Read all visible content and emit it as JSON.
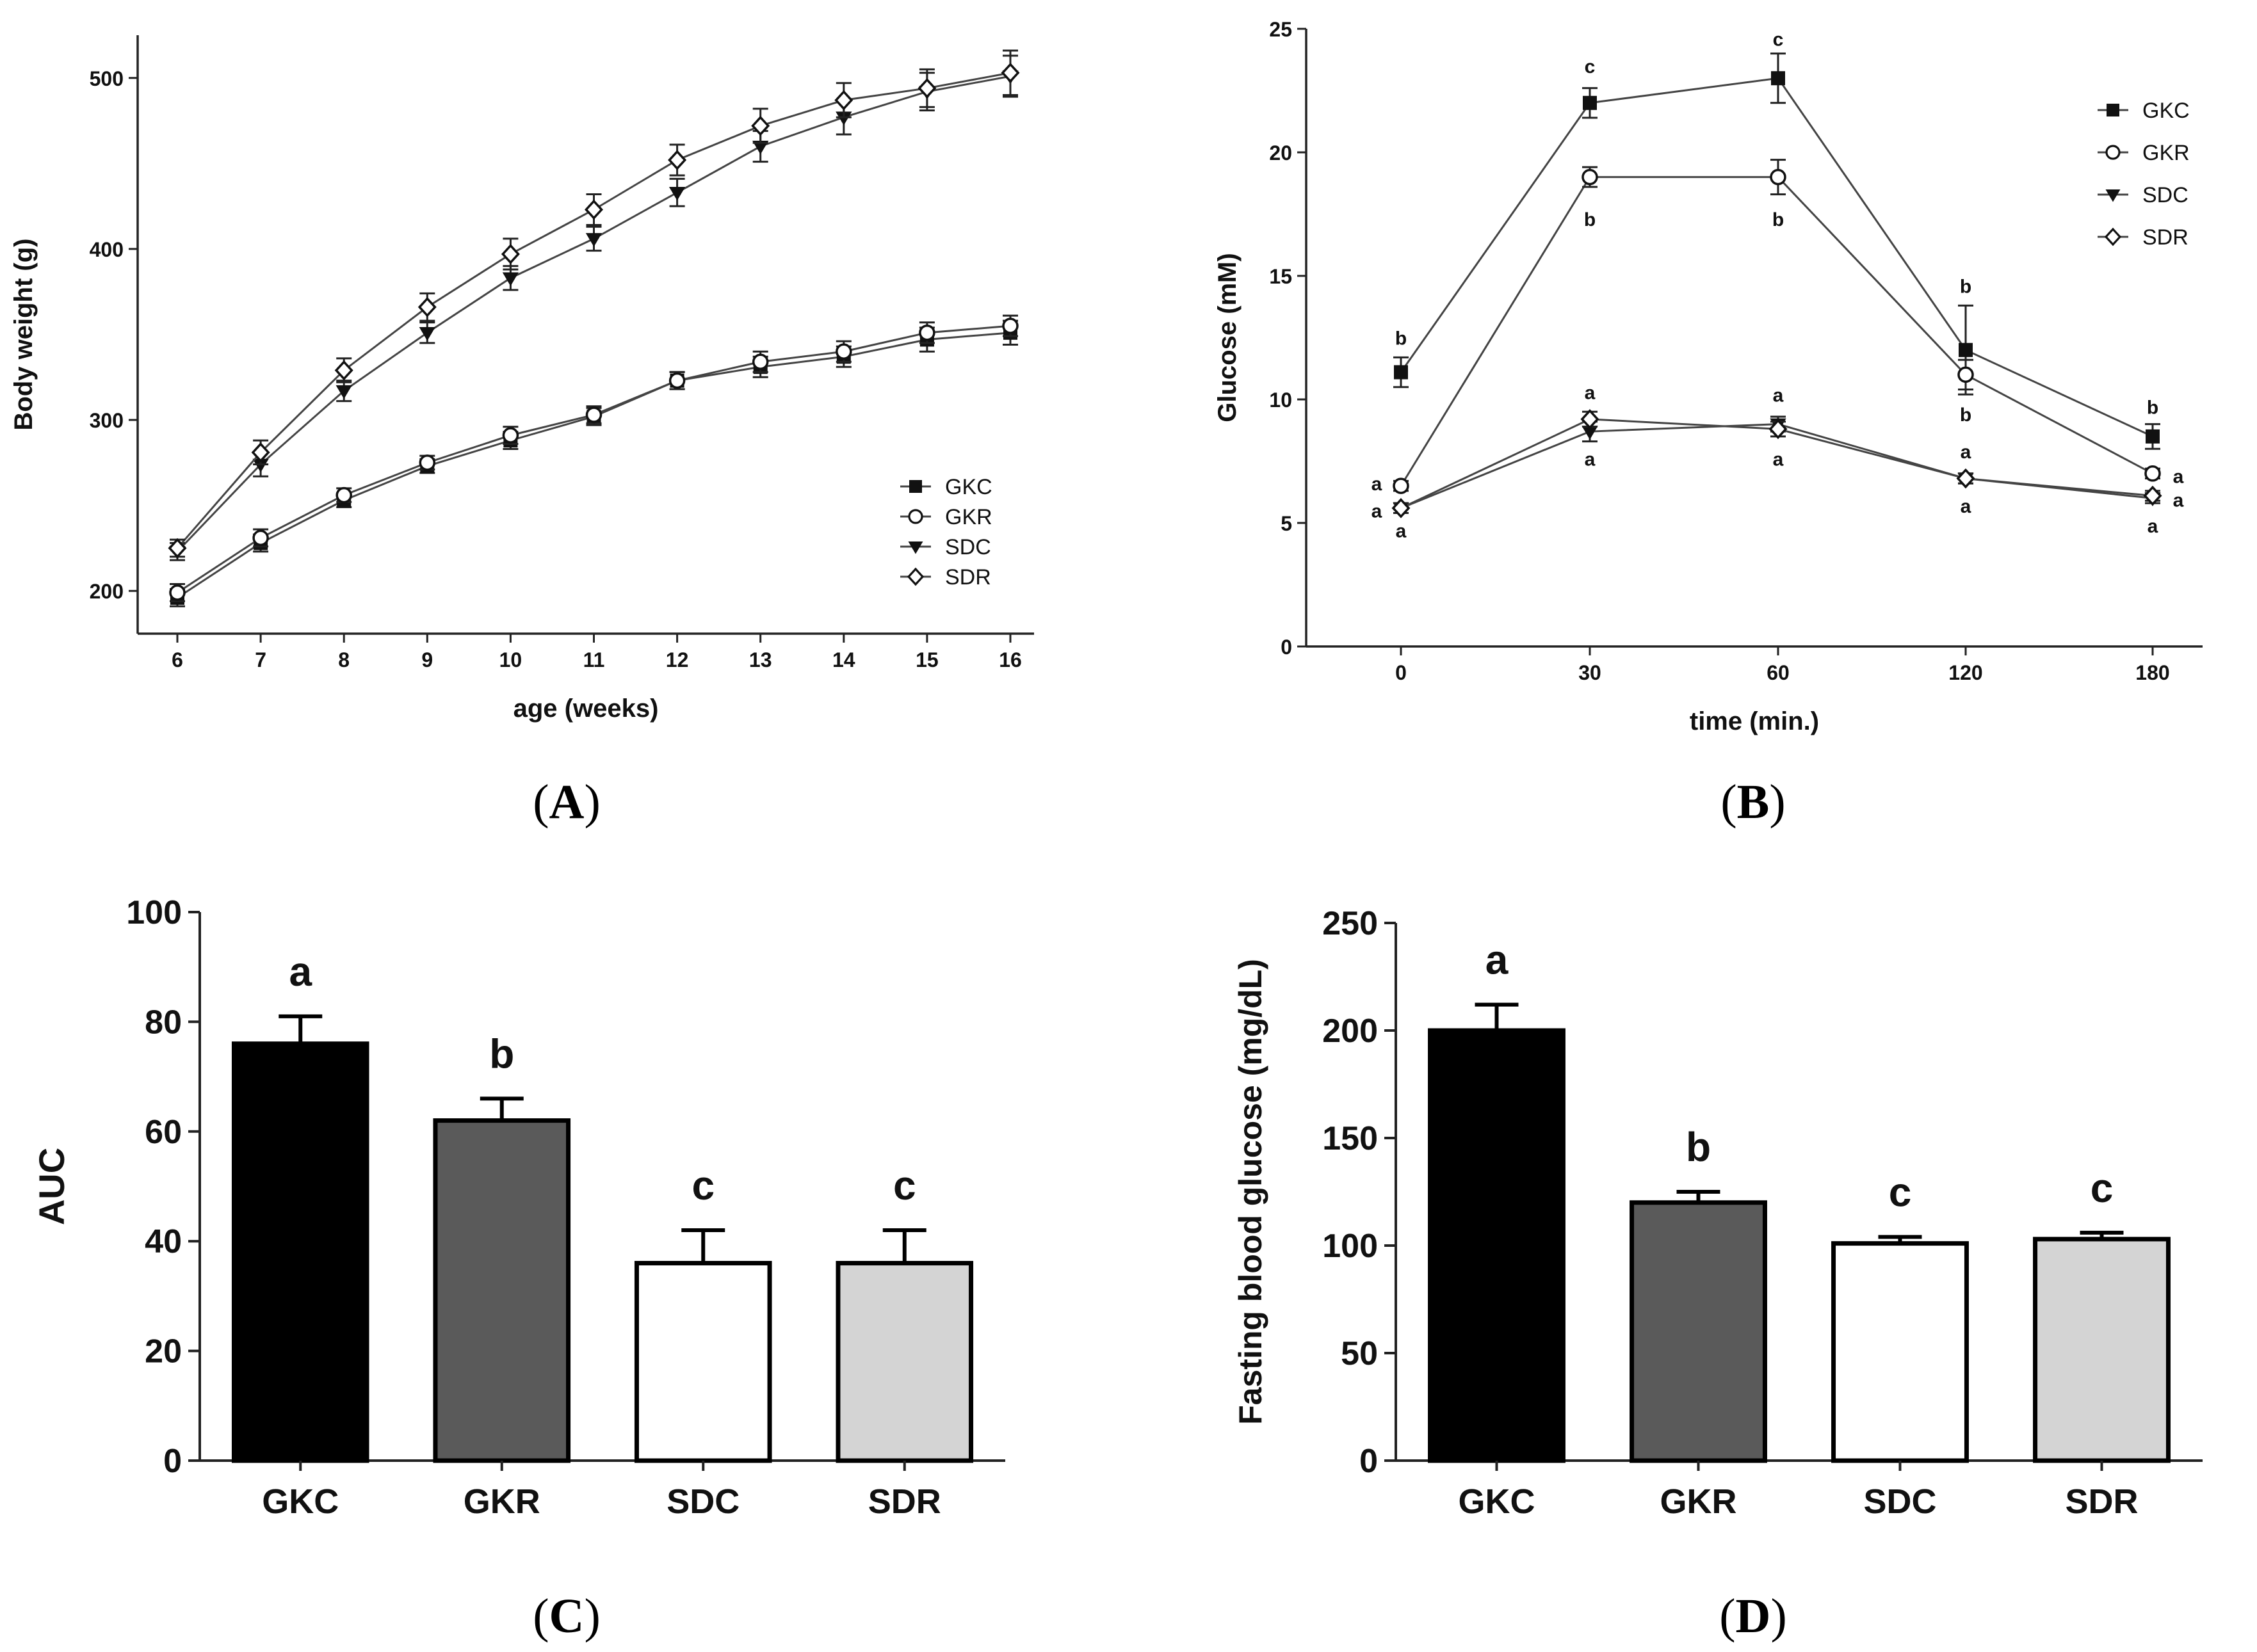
{
  "chart_data": [
    {
      "panel": "A",
      "panel_letter": "A",
      "type": "line",
      "xlabel": "age (weeks)",
      "ylabel": "Body weight (g)",
      "x": [
        6,
        7,
        8,
        9,
        10,
        11,
        12,
        13,
        14,
        15,
        16
      ],
      "xlim": [
        6,
        16
      ],
      "ylim": [
        175,
        525
      ],
      "yticks": [
        200,
        300,
        400,
        500
      ],
      "legend_position": "bottom-right",
      "series": [
        {
          "name": "GKC",
          "marker": "filled-square",
          "values": [
            196,
            228,
            253,
            273,
            288,
            302,
            323,
            331,
            337,
            347,
            351
          ],
          "errors": [
            5,
            5,
            4,
            4,
            5,
            5,
            5,
            6,
            6,
            7,
            7
          ]
        },
        {
          "name": "GKR",
          "marker": "open-circle",
          "values": [
            199,
            231,
            256,
            275,
            291,
            303,
            323,
            334,
            340,
            351,
            355
          ],
          "errors": [
            5,
            5,
            4,
            4,
            5,
            5,
            5,
            6,
            6,
            6,
            6
          ]
        },
        {
          "name": "SDC",
          "marker": "filled-triangle-down",
          "values": [
            223,
            274,
            317,
            351,
            383,
            406,
            433,
            460,
            477,
            492,
            501
          ],
          "errors": [
            5,
            7,
            6,
            6,
            7,
            7,
            8,
            9,
            10,
            11,
            12
          ]
        },
        {
          "name": "SDR",
          "marker": "open-diamond",
          "values": [
            225,
            281,
            329,
            366,
            397,
            423,
            452,
            472,
            487,
            494,
            503
          ],
          "errors": [
            5,
            7,
            7,
            8,
            9,
            9,
            9,
            10,
            10,
            11,
            13
          ]
        }
      ]
    },
    {
      "panel": "B",
      "panel_letter": "B",
      "type": "line",
      "xlabel": "time (min.)",
      "ylabel": "Glucose (mM)",
      "categories": [
        "0",
        "30",
        "60",
        "120",
        "180"
      ],
      "ylim": [
        0,
        25
      ],
      "yticks": [
        0,
        5,
        10,
        15,
        20,
        25
      ],
      "legend_position": "top-right",
      "series": [
        {
          "name": "GKC",
          "marker": "filled-square",
          "values": [
            11.1,
            22.0,
            23.0,
            12.0,
            8.5
          ],
          "errors": [
            0.6,
            0.6,
            1.0,
            1.8,
            0.5
          ]
        },
        {
          "name": "GKR",
          "marker": "open-circle",
          "values": [
            6.5,
            19.0,
            19.0,
            11.0,
            7.0
          ],
          "errors": [
            0.2,
            0.4,
            0.7,
            0.6,
            0.2
          ]
        },
        {
          "name": "SDC",
          "marker": "filled-triangle-down",
          "values": [
            5.6,
            8.7,
            9.0,
            6.8,
            6.0
          ],
          "errors": [
            0.2,
            0.4,
            0.3,
            0.2,
            0.2
          ]
        },
        {
          "name": "SDR",
          "marker": "open-diamond",
          "values": [
            5.6,
            9.2,
            8.8,
            6.8,
            6.1
          ],
          "errors": [
            0.2,
            0.3,
            0.3,
            0.2,
            0.2
          ]
        }
      ],
      "annotations": [
        {
          "category": "0",
          "value": 12.5,
          "text": "b"
        },
        {
          "category": "0",
          "value": 6.6,
          "text": "a",
          "side": "left"
        },
        {
          "category": "0",
          "value": 5.5,
          "text": "a",
          "side": "left"
        },
        {
          "category": "0",
          "value": 4.7,
          "text": "a"
        },
        {
          "category": "30",
          "value": 23.5,
          "text": "c"
        },
        {
          "category": "30",
          "value": 17.3,
          "text": "b"
        },
        {
          "category": "30",
          "value": 10.3,
          "text": "a"
        },
        {
          "category": "30",
          "value": 7.6,
          "text": "a"
        },
        {
          "category": "60",
          "value": 24.6,
          "text": "c"
        },
        {
          "category": "60",
          "value": 17.3,
          "text": "b"
        },
        {
          "category": "60",
          "value": 10.2,
          "text": "a"
        },
        {
          "category": "60",
          "value": 7.6,
          "text": "a"
        },
        {
          "category": "120",
          "value": 14.6,
          "text": "b"
        },
        {
          "category": "120",
          "value": 9.4,
          "text": "b"
        },
        {
          "category": "120",
          "value": 7.9,
          "text": "a"
        },
        {
          "category": "120",
          "value": 5.7,
          "text": "a"
        },
        {
          "category": "180",
          "value": 9.7,
          "text": "b"
        },
        {
          "category": "180",
          "value": 6.9,
          "text": "a",
          "side": "right"
        },
        {
          "category": "180",
          "value": 5.95,
          "text": "a",
          "side": "right"
        },
        {
          "category": "180",
          "value": 4.9,
          "text": "a"
        }
      ]
    },
    {
      "panel": "C",
      "panel_letter": "C",
      "type": "bar",
      "xlabel": "",
      "ylabel": "AUC",
      "categories": [
        "GKC",
        "GKR",
        "SDC",
        "SDR"
      ],
      "values": [
        76,
        62,
        36,
        36
      ],
      "errors": [
        5,
        4,
        6,
        6
      ],
      "letters": [
        "a",
        "b",
        "c",
        "c"
      ],
      "bar_colors": [
        "#000000",
        "#5a5a5a",
        "#ffffff",
        "#d4d4d4"
      ],
      "ylim": [
        0,
        100
      ],
      "yticks": [
        0,
        20,
        40,
        60,
        80,
        100
      ]
    },
    {
      "panel": "D",
      "panel_letter": "D",
      "type": "bar",
      "xlabel": "",
      "ylabel": "Fasting blood glucose (mg/dL)",
      "categories": [
        "GKC",
        "GKR",
        "SDC",
        "SDR"
      ],
      "values": [
        200,
        120,
        101,
        103
      ],
      "errors": [
        12,
        5,
        3,
        3
      ],
      "letters": [
        "a",
        "b",
        "c",
        "c"
      ],
      "bar_colors": [
        "#000000",
        "#5a5a5a",
        "#ffffff",
        "#d4d4d4"
      ],
      "ylim": [
        0,
        250
      ],
      "yticks": [
        0,
        50,
        100,
        150,
        200,
        250
      ]
    }
  ]
}
